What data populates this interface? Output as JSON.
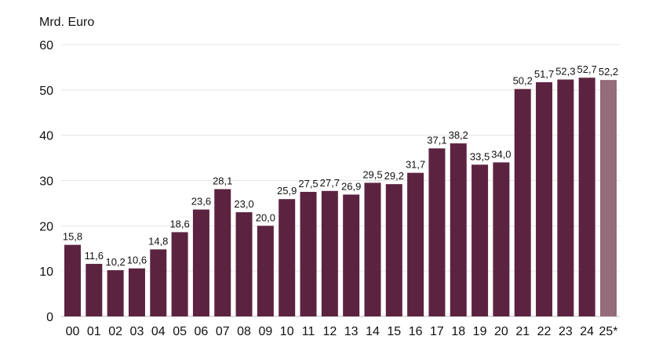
{
  "chart_data": {
    "type": "bar",
    "ylabel": "Mrd. Euro",
    "ylim": [
      0,
      60
    ],
    "yticks": [
      0,
      10,
      20,
      30,
      40,
      50,
      60
    ],
    "grid": true,
    "categories": [
      "00",
      "01",
      "02",
      "03",
      "04",
      "05",
      "06",
      "07",
      "08",
      "09",
      "10",
      "11",
      "12",
      "13",
      "14",
      "15",
      "16",
      "17",
      "18",
      "19",
      "20",
      "21",
      "22",
      "23",
      "24",
      "25*"
    ],
    "values": [
      15.8,
      11.6,
      10.2,
      10.6,
      14.8,
      18.6,
      23.6,
      28.1,
      23.0,
      20.0,
      25.9,
      27.5,
      27.7,
      26.9,
      29.5,
      29.2,
      31.7,
      37.1,
      38.2,
      33.5,
      34.0,
      50.2,
      51.7,
      52.3,
      52.7,
      52.2
    ],
    "value_labels": [
      "15,8",
      "11,6",
      "10,2",
      "10,6",
      "14,8",
      "18,6",
      "23,6",
      "28,1",
      "23,0",
      "20,0",
      "25,9",
      "27,5",
      "27,7",
      "26,9",
      "29,5",
      "29,2",
      "31,7",
      "37,1",
      "38,2",
      "33,5",
      "34,0",
      "50,2",
      "51,7",
      "52,3",
      "52,7",
      "52,2"
    ],
    "estimated": [
      false,
      false,
      false,
      false,
      false,
      false,
      false,
      false,
      false,
      false,
      false,
      false,
      false,
      false,
      false,
      false,
      false,
      false,
      false,
      false,
      false,
      false,
      false,
      false,
      false,
      true
    ],
    "colors": {
      "actual": "#5c2340",
      "estimate": "#946c7a",
      "grid": "#e4e4e4"
    }
  }
}
